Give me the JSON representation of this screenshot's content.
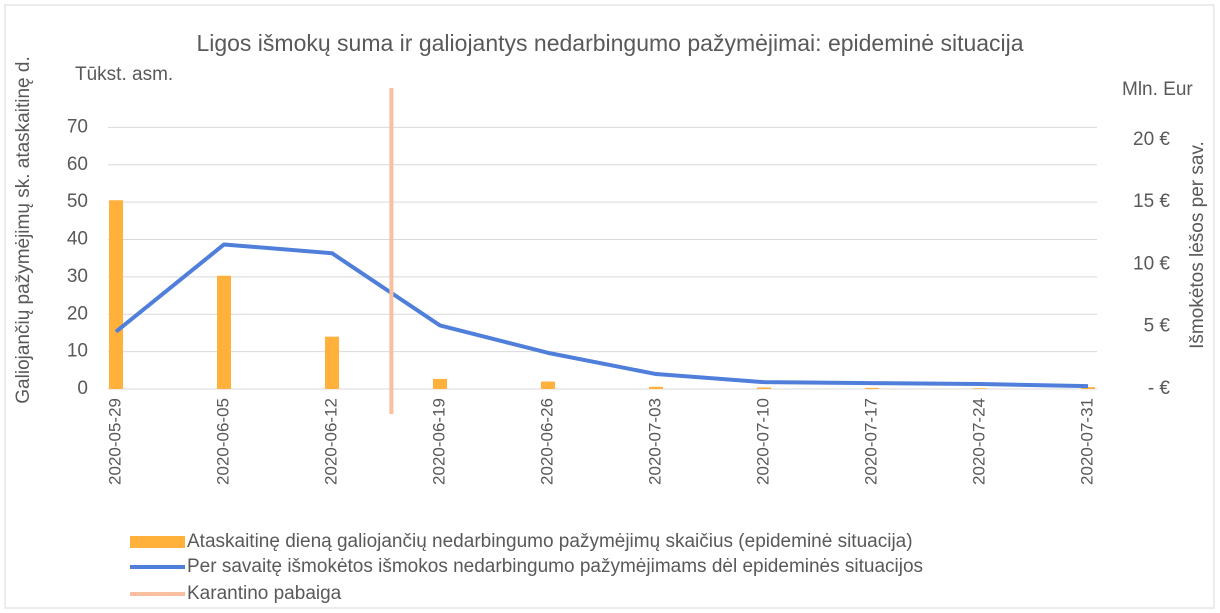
{
  "chart_data": {
    "type": "bar-line",
    "title": "Ligos išmokų suma ir galiojantys nedarbingumo pažymėjimai: epideminė situacija",
    "y_label": "Galiojančių pažymėjimų sk. ataskaitinę d.",
    "y_unit": "Tūkst. asm.",
    "y2_label": "Išmokėtos lėšos per sav.",
    "y2_unit": "Mln. Eur",
    "categories": [
      "2020-05-29",
      "2020-06-05",
      "2020-06-12",
      "2020-06-19",
      "2020-06-26",
      "2020-07-03",
      "2020-07-10",
      "2020-07-17",
      "2020-07-24",
      "2020-07-31"
    ],
    "series": [
      {
        "name": "Ataskaitinę dieną galiojančių nedarbingumo pažymėjimų skaičius (epideminė situacija)",
        "color": "#ffb13b",
        "kind": "bar",
        "values": [
          50.5,
          30.3,
          14,
          2.7,
          2.0,
          0.6,
          0.4,
          0.3,
          0.2,
          0.5
        ]
      },
      {
        "name": "Per savaitę išmokėtos išmokos nedarbingumo pažymėjimams dėl epideminės situacijos",
        "color": "#4f7fdb",
        "kind": "line",
        "axis": "y2",
        "values": [
          4.6,
          11.6,
          10.9,
          5.1,
          2.9,
          1.2,
          0.55,
          0.47,
          0.4,
          0.23
        ]
      }
    ],
    "marker_line": {
      "name": "Karantino pabaiga",
      "color": "#f8c0a0",
      "x_index": 2.55
    },
    "ylim": [
      0,
      80
    ],
    "yticks": [
      0,
      10,
      20,
      30,
      40,
      50,
      60,
      70
    ],
    "y2lim": [
      0,
      24
    ],
    "y2ticks": [
      {
        "value": 0,
        "label": "- €"
      },
      {
        "value": 5,
        "label": "5 €"
      },
      {
        "value": 10,
        "label": "10 €"
      },
      {
        "value": 15,
        "label": "15 €"
      },
      {
        "value": 20,
        "label": "20 €"
      }
    ],
    "grid": true
  }
}
